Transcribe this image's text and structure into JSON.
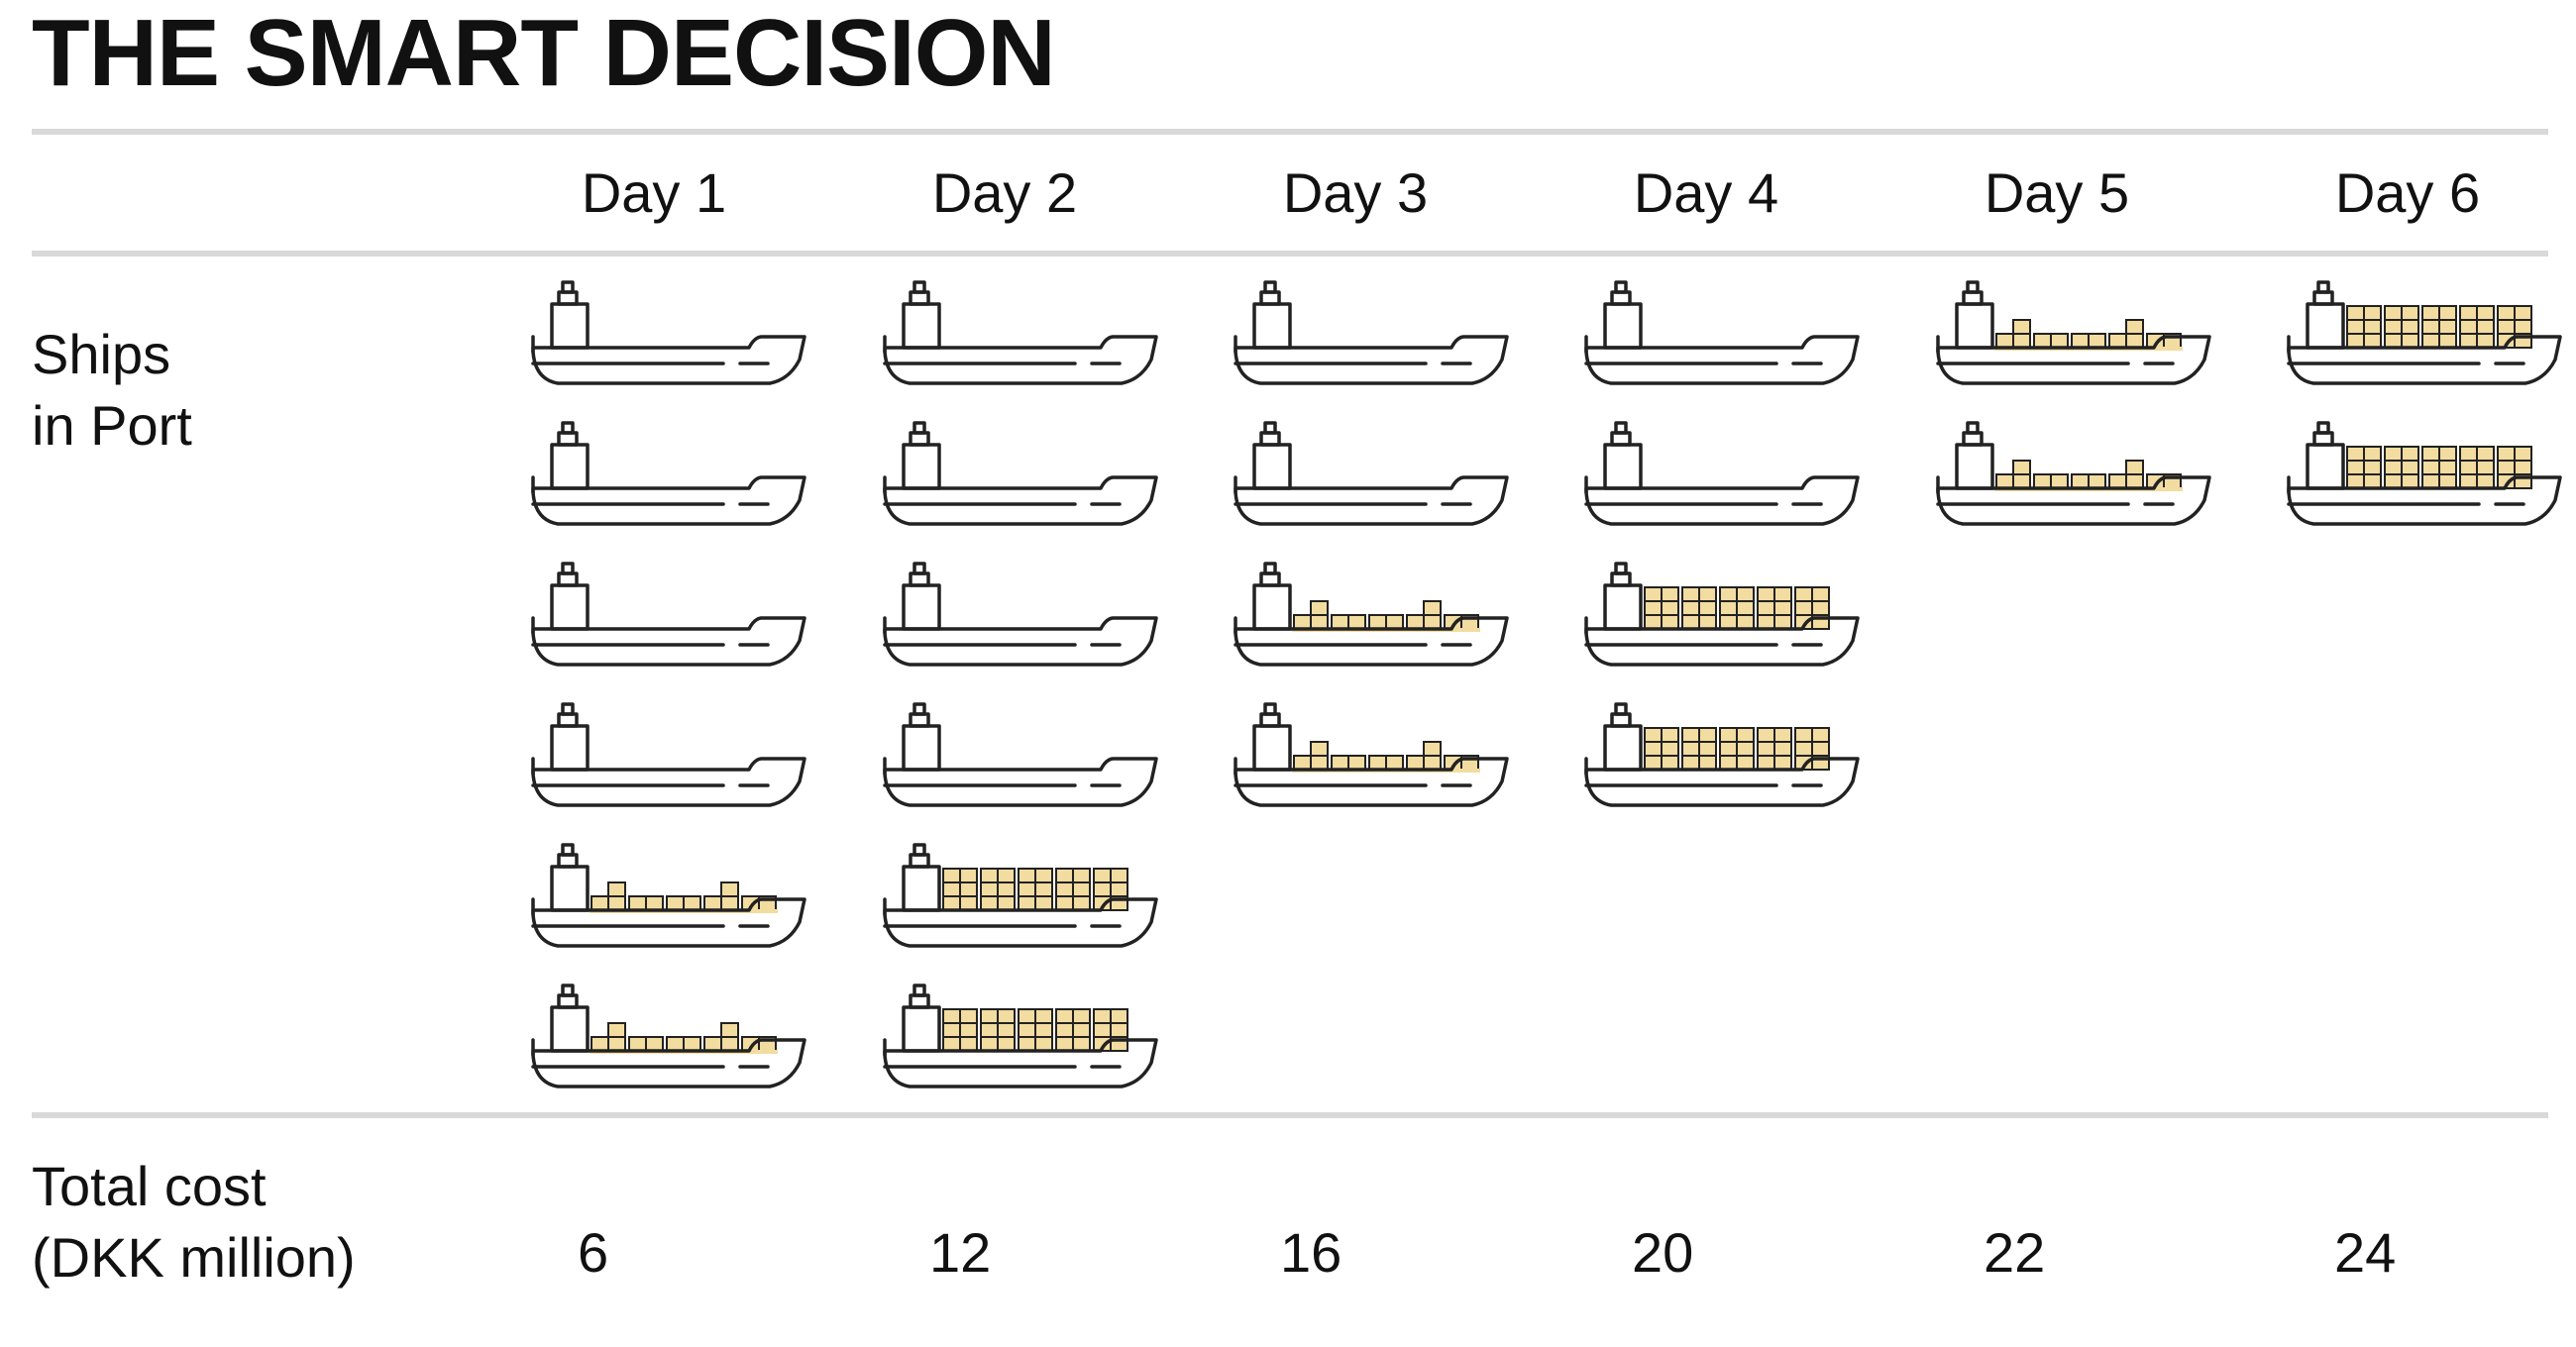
{
  "title": "THE SMART DECISION",
  "columns": [
    {
      "label": "Day 1",
      "cost": "6",
      "ships": [
        "empty",
        "empty",
        "empty",
        "empty",
        "partial",
        "partial"
      ]
    },
    {
      "label": "Day 2",
      "cost": "12",
      "ships": [
        "empty",
        "empty",
        "empty",
        "empty",
        "full",
        "full"
      ]
    },
    {
      "label": "Day 3",
      "cost": "16",
      "ships": [
        "empty",
        "empty",
        "partial",
        "partial"
      ]
    },
    {
      "label": "Day 4",
      "cost": "20",
      "ships": [
        "empty",
        "empty",
        "full",
        "full"
      ]
    },
    {
      "label": "Day 5",
      "cost": "22",
      "ships": [
        "partial",
        "partial"
      ]
    },
    {
      "label": "Day 6",
      "cost": "24",
      "ships": [
        "full",
        "full"
      ]
    }
  ],
  "rows": {
    "ships_label_line1": "Ships",
    "ships_label_line2": "in Port",
    "cost_label_line1": "Total cost",
    "cost_label_line2": "(DKK million)"
  },
  "legend_semantics": {
    "empty": "ship without containers",
    "partial": "ship partially loaded with containers",
    "full": "ship fully loaded with containers"
  },
  "colors": {
    "text": "#111111",
    "rule": "#d9d9d9",
    "ship_stroke": "#222222",
    "container_fill": "#f2dca0"
  },
  "icon": "cargo-ship-icon"
}
